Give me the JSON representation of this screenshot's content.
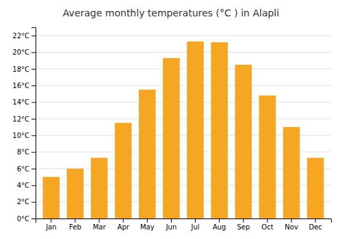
{
  "chart_data": {
    "type": "bar",
    "title": "Average monthly temperatures (°C ) in Alaplı̇",
    "categories": [
      "Jan",
      "Feb",
      "Mar",
      "Apr",
      "May",
      "Jun",
      "Jul",
      "Aug",
      "Sep",
      "Oct",
      "Nov",
      "Dec"
    ],
    "values": [
      5.0,
      6.0,
      7.3,
      11.5,
      15.5,
      19.3,
      21.3,
      21.2,
      18.5,
      14.8,
      11.0,
      7.3
    ],
    "color": "#F5A623",
    "ylim": [
      0,
      23
    ],
    "yticks": [
      {
        "value": 0,
        "label": "0°C"
      },
      {
        "value": 2,
        "label": "2°C"
      },
      {
        "value": 4,
        "label": "4°C"
      },
      {
        "value": 6,
        "label": "6°C"
      },
      {
        "value": 8,
        "label": "8°C"
      },
      {
        "value": 10,
        "label": "10°C"
      },
      {
        "value": 12,
        "label": "12°C"
      },
      {
        "value": 14,
        "label": "14°C"
      },
      {
        "value": 16,
        "label": "16°C"
      },
      {
        "value": 18,
        "label": "18°C"
      },
      {
        "value": 20,
        "label": "20°C"
      },
      {
        "value": 22,
        "label": "22°C"
      }
    ],
    "grid": true
  }
}
